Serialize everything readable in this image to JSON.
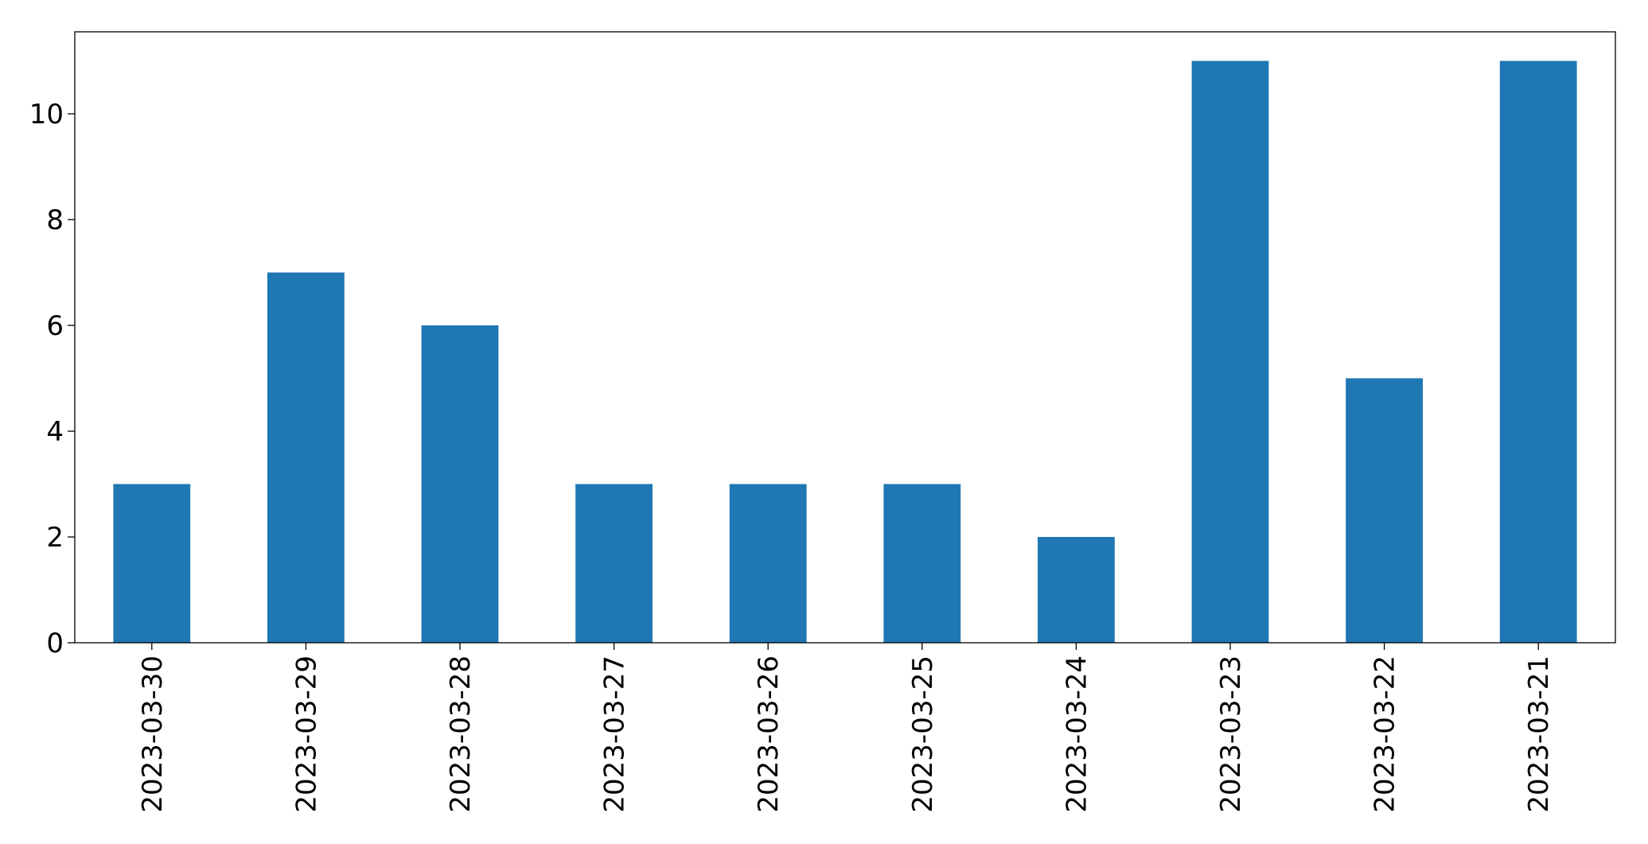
{
  "chart_data": {
    "type": "bar",
    "categories": [
      "2023-03-30",
      "2023-03-29",
      "2023-03-28",
      "2023-03-27",
      "2023-03-26",
      "2023-03-25",
      "2023-03-24",
      "2023-03-23",
      "2023-03-22",
      "2023-03-21"
    ],
    "values": [
      3,
      7,
      6,
      3,
      3,
      3,
      2,
      11,
      5,
      11
    ],
    "color": "#1f77b4",
    "ylim": [
      0,
      11.55
    ],
    "yticks": [
      0,
      2,
      4,
      6,
      8,
      10
    ],
    "grid": false
  }
}
